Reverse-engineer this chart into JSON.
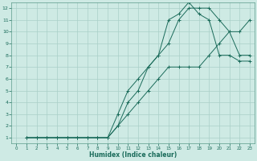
{
  "xlabel": "Humidex (Indice chaleur)",
  "bg_color": "#ceeae4",
  "grid_color": "#aacfc8",
  "line_color": "#1a6b5a",
  "spine_color": "#5a9a8a",
  "xlim": [
    -0.5,
    23.5
  ],
  "ylim": [
    0.5,
    12.5
  ],
  "xticks": [
    0,
    1,
    2,
    3,
    4,
    5,
    6,
    7,
    8,
    9,
    10,
    11,
    12,
    13,
    14,
    15,
    16,
    17,
    18,
    19,
    20,
    21,
    22,
    23
  ],
  "yticks": [
    1,
    2,
    3,
    4,
    5,
    6,
    7,
    8,
    9,
    10,
    11,
    12
  ],
  "line1_x": [
    1,
    2,
    3,
    4,
    5,
    6,
    7,
    8,
    9,
    10,
    11,
    12,
    13,
    14,
    15,
    16,
    17,
    18,
    19,
    20,
    21,
    22,
    23
  ],
  "line1_y": [
    1,
    1,
    1,
    1,
    1,
    1,
    1,
    1,
    1,
    2,
    3,
    4,
    5,
    6,
    7,
    7,
    7,
    7,
    8,
    9,
    10,
    10,
    11
  ],
  "line2_x": [
    1,
    2,
    3,
    4,
    5,
    6,
    7,
    8,
    9,
    10,
    11,
    12,
    13,
    14,
    15,
    16,
    17,
    18,
    19,
    20,
    21,
    22,
    23
  ],
  "line2_y": [
    1,
    1,
    1,
    1,
    1,
    1,
    1,
    1,
    1,
    2,
    4,
    5,
    7,
    8,
    9,
    11,
    12,
    12,
    12,
    11,
    10,
    8,
    8
  ],
  "line3_x": [
    1,
    2,
    3,
    4,
    5,
    6,
    7,
    8,
    9,
    10,
    11,
    12,
    13,
    14,
    15,
    16,
    17,
    18,
    19,
    20,
    21,
    22,
    23
  ],
  "line3_y": [
    1,
    1,
    1,
    1,
    1,
    1,
    1,
    1,
    1,
    3,
    5,
    6,
    7,
    8,
    11,
    11.5,
    12.5,
    11.5,
    11,
    8,
    8,
    7.5,
    7.5
  ]
}
